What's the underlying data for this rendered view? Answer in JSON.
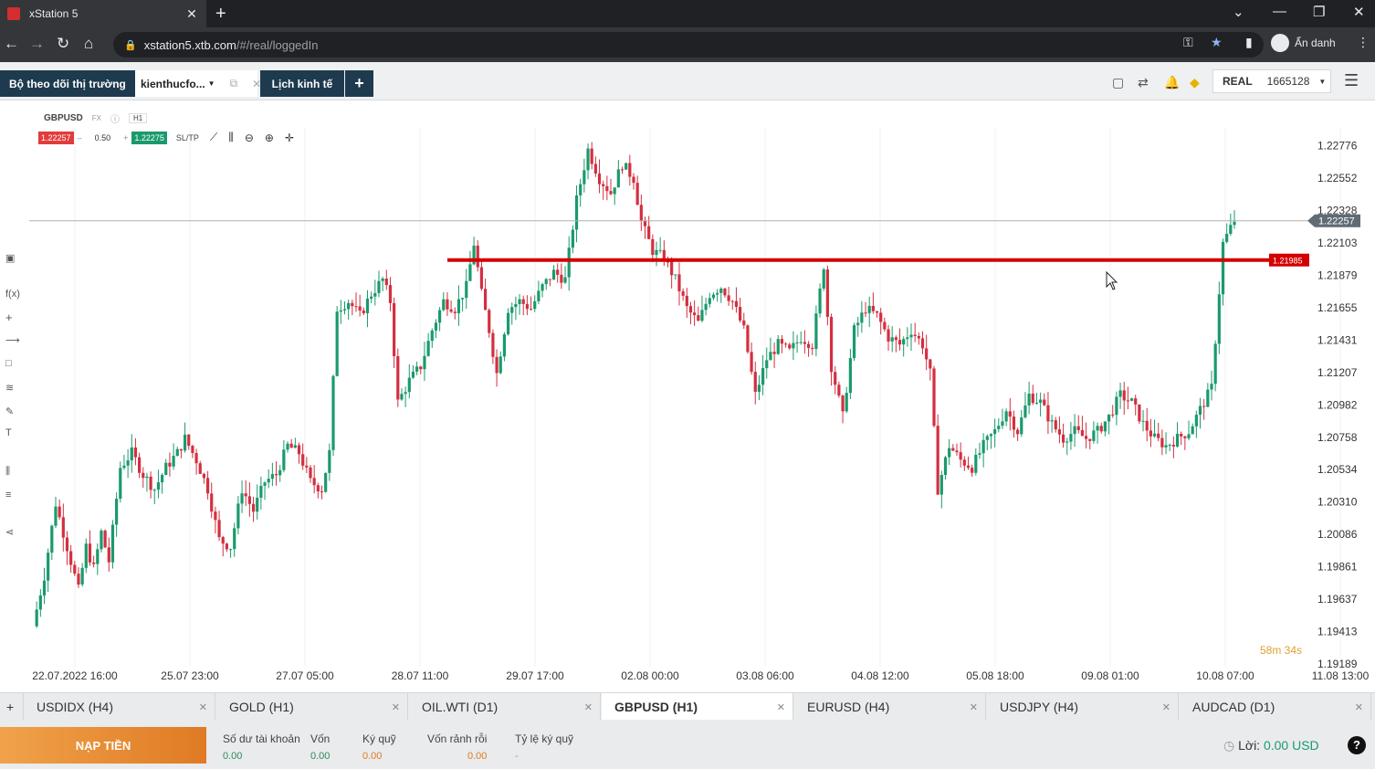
{
  "browser": {
    "tab_title": "xStation 5",
    "url_host": "xstation5.xtb.com",
    "url_path": "/#/real/loggedIn",
    "profile_label": "Ẩn danh"
  },
  "app_tabs": {
    "watchlist_label": "Bộ theo dõi thị trường",
    "user_tab_label": "kienthucfo...",
    "calendar_label": "Lịch kinh tế",
    "add_label": "+"
  },
  "account": {
    "mode": "REAL",
    "number": "1665128"
  },
  "chart": {
    "symbol": "GBPUSD",
    "market": "FX",
    "timeframe": "H1",
    "bid": "1.22257",
    "ask": "1.22275",
    "volume": "0.50",
    "sltp_label": "SL/TP",
    "current_price_label": "1.22257",
    "line_price_label": "1.21985",
    "countdown_min": "58m",
    "countdown_sec": "34s"
  },
  "chart_data": {
    "type": "candlestick",
    "symbol": "GBPUSD",
    "timeframe": "H1",
    "y_ticks": [
      "1.22776",
      "1.22552",
      "1.22328",
      "1.22103",
      "1.21879",
      "1.21655",
      "1.21431",
      "1.21207",
      "1.20982",
      "1.20758",
      "1.20534",
      "1.20310",
      "1.20086",
      "1.19861",
      "1.19637",
      "1.19413",
      "1.19189"
    ],
    "x_ticks": [
      "22.07.2022 16:00",
      "25.07 23:00",
      "27.07 05:00",
      "28.07 11:00",
      "29.07 17:00",
      "02.08 00:00",
      "03.08 06:00",
      "04.08 12:00",
      "05.08 18:00",
      "09.08 01:00",
      "10.08 07:00",
      "11.08 13:00"
    ],
    "ylim": [
      1.1917,
      1.229
    ],
    "horizontal_line": 1.21985,
    "current_price": 1.22257,
    "up_color": "#1a9a6c",
    "down_color": "#d32f3f",
    "path_points": [
      [
        0,
        1.1945
      ],
      [
        3,
        1.198
      ],
      [
        6,
        1.203
      ],
      [
        9,
        1.2
      ],
      [
        12,
        1.197
      ],
      [
        14,
        1.2
      ],
      [
        16,
        1.1985
      ],
      [
        18,
        1.201
      ],
      [
        20,
        1.199
      ],
      [
        23,
        1.2055
      ],
      [
        26,
        1.2065
      ],
      [
        29,
        1.205
      ],
      [
        32,
        1.204
      ],
      [
        35,
        1.2055
      ],
      [
        38,
        1.2065
      ],
      [
        40,
        1.2075
      ],
      [
        43,
        1.206
      ],
      [
        46,
        1.204
      ],
      [
        49,
        1.2005
      ],
      [
        52,
        1.2
      ],
      [
        55,
        1.204
      ],
      [
        58,
        1.2025
      ],
      [
        61,
        1.2045
      ],
      [
        64,
        1.205
      ],
      [
        67,
        1.207
      ],
      [
        70,
        1.2065
      ],
      [
        73,
        1.2045
      ],
      [
        76,
        1.204
      ],
      [
        78,
        1.2065
      ],
      [
        80,
        1.2165
      ],
      [
        83,
        1.217
      ],
      [
        86,
        1.216
      ],
      [
        89,
        1.2175
      ],
      [
        92,
        1.2185
      ],
      [
        94,
        1.217
      ],
      [
        96,
        1.21
      ],
      [
        99,
        1.2115
      ],
      [
        102,
        1.2125
      ],
      [
        105,
        1.215
      ],
      [
        108,
        1.217
      ],
      [
        111,
        1.2165
      ],
      [
        114,
        1.218
      ],
      [
        116,
        1.221
      ],
      [
        118,
        1.2175
      ],
      [
        120,
        1.215
      ],
      [
        122,
        1.212
      ],
      [
        125,
        1.2165
      ],
      [
        128,
        1.217
      ],
      [
        131,
        1.2165
      ],
      [
        134,
        1.218
      ],
      [
        137,
        1.219
      ],
      [
        140,
        1.2185
      ],
      [
        143,
        1.224
      ],
      [
        146,
        1.2275
      ],
      [
        149,
        1.2255
      ],
      [
        152,
        1.2245
      ],
      [
        155,
        1.2265
      ],
      [
        158,
        1.2255
      ],
      [
        160,
        1.2225
      ],
      [
        163,
        1.2205
      ],
      [
        166,
        1.22
      ],
      [
        169,
        1.2185
      ],
      [
        172,
        1.2165
      ],
      [
        175,
        1.2155
      ],
      [
        178,
        1.2175
      ],
      [
        181,
        1.218
      ],
      [
        184,
        1.217
      ],
      [
        187,
        1.215
      ],
      [
        190,
        1.2105
      ],
      [
        193,
        1.213
      ],
      [
        196,
        1.214
      ],
      [
        199,
        1.2135
      ],
      [
        202,
        1.2145
      ],
      [
        205,
        1.214
      ],
      [
        208,
        1.2195
      ],
      [
        210,
        1.2125
      ],
      [
        213,
        1.209
      ],
      [
        216,
        1.215
      ],
      [
        219,
        1.2165
      ],
      [
        222,
        1.216
      ],
      [
        225,
        1.2145
      ],
      [
        228,
        1.214
      ],
      [
        231,
        1.215
      ],
      [
        234,
        1.214
      ],
      [
        236,
        1.212
      ],
      [
        238,
        1.204
      ],
      [
        241,
        1.207
      ],
      [
        244,
        1.206
      ],
      [
        247,
        1.2055
      ],
      [
        250,
        1.207
      ],
      [
        253,
        1.208
      ],
      [
        256,
        1.2095
      ],
      [
        259,
        1.208
      ],
      [
        262,
        1.2105
      ],
      [
        265,
        1.21
      ],
      [
        268,
        1.2085
      ],
      [
        271,
        1.2075
      ],
      [
        274,
        1.208
      ],
      [
        277,
        1.2075
      ],
      [
        280,
        1.208
      ],
      [
        283,
        1.209
      ],
      [
        286,
        1.2105
      ],
      [
        289,
        1.21
      ],
      [
        292,
        1.2085
      ],
      [
        295,
        1.2075
      ],
      [
        298,
        1.207
      ],
      [
        301,
        1.2075
      ],
      [
        304,
        1.208
      ],
      [
        307,
        1.2095
      ],
      [
        310,
        1.211
      ],
      [
        313,
        1.221
      ],
      [
        316,
        1.2226
      ]
    ]
  },
  "instrument_tabs": [
    {
      "label": "USDIDX (H4)"
    },
    {
      "label": "GOLD (H1)"
    },
    {
      "label": "OIL.WTI (D1)"
    },
    {
      "label": "GBPUSD (H1)"
    },
    {
      "label": "EURUSD (H4)"
    },
    {
      "label": "USDJPY (H4)"
    },
    {
      "label": "AUDCAD (D1)"
    }
  ],
  "footer": {
    "deposit_label": "NẠP TIỀN",
    "balance_label": "Số dư tài khoản",
    "balance_value": "0.00",
    "equity_label": "Vốn",
    "equity_value": "0.00",
    "margin_label": "Ký quỹ",
    "margin_value": "0.00",
    "free_margin_label": "Vốn rảnh rỗi",
    "free_margin_value": "0.00",
    "margin_level_label": "Tỷ lệ ký quỹ",
    "margin_level_value": "-",
    "profit_label": "Lời:",
    "profit_value": "0.00 USD"
  }
}
